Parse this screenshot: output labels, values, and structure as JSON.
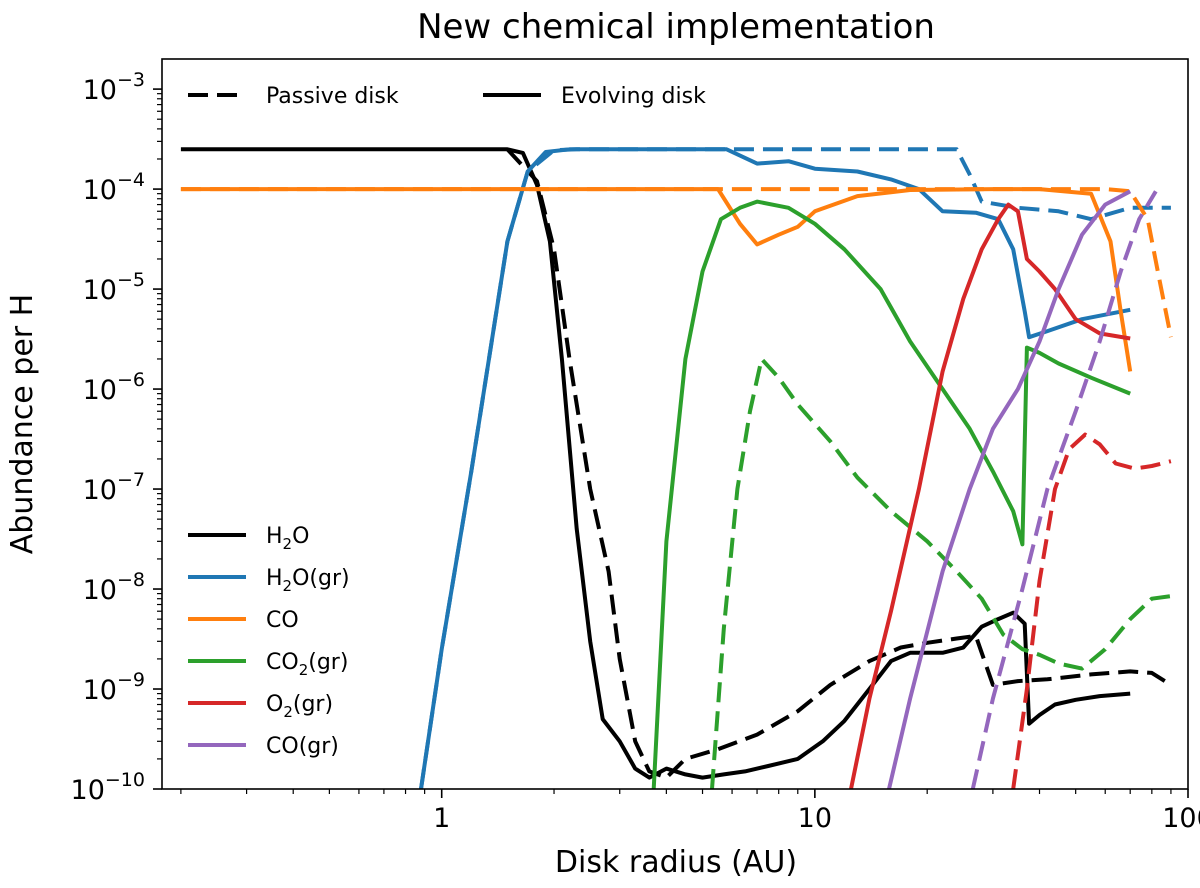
{
  "chart_data": {
    "type": "line",
    "title": "New chemical implementation",
    "xlabel": "Disk radius (AU)",
    "ylabel": "Abundance per H",
    "xscale": "log",
    "yscale": "log",
    "xlim": [
      0.178,
      100
    ],
    "ylim": [
      1e-10,
      0.002
    ],
    "grid": false,
    "x_ticks": [
      {
        "value": 1,
        "label": "1"
      },
      {
        "value": 10,
        "label": "10"
      },
      {
        "value": 100,
        "label": "100"
      }
    ],
    "y_ticks": [
      {
        "value": 1e-10,
        "base": "10",
        "exp": "−10"
      },
      {
        "value": 1e-09,
        "base": "10",
        "exp": "−9"
      },
      {
        "value": 1e-08,
        "base": "10",
        "exp": "−8"
      },
      {
        "value": 1e-07,
        "base": "10",
        "exp": "−7"
      },
      {
        "value": 1e-06,
        "base": "10",
        "exp": "−6"
      },
      {
        "value": 1e-05,
        "base": "10",
        "exp": "−5"
      },
      {
        "value": 0.0001,
        "base": "10",
        "exp": "−4"
      },
      {
        "value": 0.001,
        "base": "10",
        "exp": "−3"
      }
    ],
    "style_legend": {
      "placement": "top-left",
      "entries": [
        {
          "label": "Passive disk",
          "dash": true
        },
        {
          "label": "Evolving disk",
          "dash": false
        }
      ]
    },
    "species_legend": {
      "placement": "lower-left",
      "entries": [
        {
          "series": "H2O",
          "base": "H",
          "sub": "2",
          "rest": "O",
          "color": "#000000"
        },
        {
          "series": "H2O(gr)",
          "base": "H",
          "sub": "2",
          "rest": "O(gr)",
          "color": "#1f77b4"
        },
        {
          "series": "CO",
          "base": "CO",
          "sub": "",
          "rest": "",
          "color": "#ff7f0e"
        },
        {
          "series": "CO2(gr)",
          "base": "CO",
          "sub": "2",
          "rest": "(gr)",
          "color": "#2ca02c"
        },
        {
          "series": "O2(gr)",
          "base": "O",
          "sub": "2",
          "rest": "(gr)",
          "color": "#d62728"
        },
        {
          "series": "CO(gr)",
          "base": "CO",
          "sub": "",
          "rest": "(gr)",
          "color": "#9467bd"
        }
      ]
    },
    "series": [
      {
        "name": "H2O",
        "model": "Evolving disk",
        "color": "#000000",
        "dashed": false,
        "points": [
          [
            0.2,
            0.00025
          ],
          [
            1.5,
            0.00025
          ],
          [
            1.65,
            0.00023
          ],
          [
            1.8,
            0.00011
          ],
          [
            1.95,
            3e-05
          ],
          [
            2.1,
            2e-06
          ],
          [
            2.3,
            4e-08
          ],
          [
            2.5,
            3e-09
          ],
          [
            2.7,
            5e-10
          ],
          [
            3.0,
            3e-10
          ],
          [
            3.3,
            1.6e-10
          ],
          [
            3.6,
            1.3e-10
          ],
          [
            4.0,
            1.6e-10
          ],
          [
            4.5,
            1.4e-10
          ],
          [
            5.0,
            1.3e-10
          ],
          [
            5.7,
            1.4e-10
          ],
          [
            6.5,
            1.5e-10
          ],
          [
            7.5,
            1.7e-10
          ],
          [
            9.0,
            2e-10
          ],
          [
            10.5,
            3e-10
          ],
          [
            12.0,
            4.8e-10
          ],
          [
            14.0,
            1e-09
          ],
          [
            16.0,
            1.9e-09
          ],
          [
            18.0,
            2.3e-09
          ],
          [
            22.0,
            2.3e-09
          ],
          [
            25.0,
            2.6e-09
          ],
          [
            28.0,
            4.2e-09
          ],
          [
            31.0,
            5e-09
          ],
          [
            34.0,
            5.8e-09
          ],
          [
            36.5,
            4.5e-09
          ],
          [
            37.5,
            4.5e-10
          ],
          [
            40.0,
            5.5e-10
          ],
          [
            44.0,
            7e-10
          ],
          [
            50.0,
            7.8e-10
          ],
          [
            58.0,
            8.5e-10
          ],
          [
            70.0,
            9e-10
          ]
        ]
      },
      {
        "name": "H2O",
        "model": "Passive disk",
        "color": "#000000",
        "dashed": true,
        "points": [
          [
            1.5,
            0.00025
          ],
          [
            1.8,
            0.00012
          ],
          [
            2.0,
            2.5e-05
          ],
          [
            2.2,
            2e-06
          ],
          [
            2.5,
            1e-07
          ],
          [
            2.8,
            1.5e-08
          ],
          [
            3.0,
            2e-09
          ],
          [
            3.3,
            3e-10
          ],
          [
            3.6,
            1.5e-10
          ],
          [
            4.0,
            1.3e-10
          ],
          [
            4.5,
            2e-10
          ],
          [
            5.5,
            2.5e-10
          ],
          [
            7.0,
            3.5e-10
          ],
          [
            9.0,
            6e-10
          ],
          [
            11.0,
            1.1e-09
          ],
          [
            14.0,
            1.9e-09
          ],
          [
            17.0,
            2.6e-09
          ],
          [
            20.0,
            2.9e-09
          ],
          [
            24.0,
            3.2e-09
          ],
          [
            27.0,
            3.4e-09
          ],
          [
            30.0,
            1.1e-09
          ],
          [
            35.0,
            1.2e-09
          ],
          [
            42.0,
            1.25e-09
          ],
          [
            55.0,
            1.4e-09
          ],
          [
            70.0,
            1.5e-09
          ],
          [
            80.0,
            1.45e-09
          ],
          [
            90.0,
            1.1e-09
          ]
        ]
      },
      {
        "name": "H2O(gr)",
        "model": "Evolving disk",
        "color": "#1f77b4",
        "dashed": false,
        "points": [
          [
            0.88,
            1e-10
          ],
          [
            1.0,
            2.5e-09
          ],
          [
            1.2,
            1.5e-07
          ],
          [
            1.5,
            3e-05
          ],
          [
            1.7,
            0.00015
          ],
          [
            1.9,
            0.000235
          ],
          [
            2.2,
            0.00025
          ],
          [
            5.8,
            0.00025
          ],
          [
            7.0,
            0.00018
          ],
          [
            8.5,
            0.00019
          ],
          [
            10.0,
            0.00016
          ],
          [
            13.0,
            0.00015
          ],
          [
            16.0,
            0.000125
          ],
          [
            19.0,
            0.0001
          ],
          [
            22.0,
            6e-05
          ],
          [
            27.0,
            5.8e-05
          ],
          [
            31.0,
            5e-05
          ],
          [
            34.0,
            2.5e-05
          ],
          [
            36.5,
            6e-06
          ],
          [
            37.5,
            3.3e-06
          ],
          [
            42.0,
            3.8e-06
          ],
          [
            52.0,
            5e-06
          ],
          [
            70.0,
            6.2e-06
          ]
        ]
      },
      {
        "name": "H2O(gr)",
        "model": "Passive disk",
        "color": "#1f77b4",
        "dashed": true,
        "points": [
          [
            0.88,
            1e-10
          ],
          [
            1.0,
            2.5e-09
          ],
          [
            1.2,
            1.5e-07
          ],
          [
            1.5,
            3e-05
          ],
          [
            1.7,
            0.00015
          ],
          [
            2.0,
            0.000245
          ],
          [
            2.3,
            0.00025
          ],
          [
            24.0,
            0.00025
          ],
          [
            26.0,
            0.00014
          ],
          [
            28.0,
            7.5e-05
          ],
          [
            35.0,
            6.5e-05
          ],
          [
            45.0,
            6e-05
          ],
          [
            55.0,
            5e-05
          ],
          [
            70.0,
            6.5e-05
          ],
          [
            90.0,
            6.5e-05
          ]
        ]
      },
      {
        "name": "CO",
        "model": "Evolving disk",
        "color": "#ff7f0e",
        "dashed": false,
        "points": [
          [
            0.2,
            0.0001
          ],
          [
            5.5,
            0.0001
          ],
          [
            6.3,
            4.5e-05
          ],
          [
            7.0,
            2.8e-05
          ],
          [
            8.0,
            3.5e-05
          ],
          [
            9.0,
            4.2e-05
          ],
          [
            10.0,
            6e-05
          ],
          [
            13.0,
            8.5e-05
          ],
          [
            18.0,
            9.8e-05
          ],
          [
            30.0,
            0.0001
          ],
          [
            40.0,
            0.0001
          ],
          [
            55.0,
            9e-05
          ],
          [
            62.0,
            3e-05
          ],
          [
            66.0,
            6e-06
          ],
          [
            70.0,
            1.5e-06
          ]
        ]
      },
      {
        "name": "CO",
        "model": "Passive disk",
        "color": "#ff7f0e",
        "dashed": true,
        "points": [
          [
            0.2,
            0.0001
          ],
          [
            60.0,
            0.0001
          ],
          [
            70.0,
            9.5e-05
          ],
          [
            78.0,
            5e-05
          ],
          [
            83.0,
            1.5e-05
          ],
          [
            90.0,
            3.3e-06
          ]
        ]
      },
      {
        "name": "CO2(gr)",
        "model": "Evolving disk",
        "color": "#2ca02c",
        "dashed": false,
        "points": [
          [
            3.7,
            1e-10
          ],
          [
            4.0,
            3e-08
          ],
          [
            4.5,
            2e-06
          ],
          [
            5.0,
            1.5e-05
          ],
          [
            5.6,
            5e-05
          ],
          [
            6.3,
            6.5e-05
          ],
          [
            7.0,
            7.5e-05
          ],
          [
            8.5,
            6.5e-05
          ],
          [
            10.0,
            4.5e-05
          ],
          [
            12.0,
            2.5e-05
          ],
          [
            15.0,
            1e-05
          ],
          [
            18.0,
            3e-06
          ],
          [
            22.0,
            1e-06
          ],
          [
            26.0,
            4e-07
          ],
          [
            30.0,
            1.5e-07
          ],
          [
            34.0,
            6e-08
          ],
          [
            36.0,
            2.8e-08
          ],
          [
            37.0,
            2.6e-06
          ],
          [
            40.0,
            2.3e-06
          ],
          [
            45.0,
            1.8e-06
          ],
          [
            55.0,
            1.3e-06
          ],
          [
            70.0,
            9e-07
          ]
        ]
      },
      {
        "name": "CO2(gr)",
        "model": "Passive disk",
        "color": "#2ca02c",
        "dashed": true,
        "points": [
          [
            5.3,
            1e-10
          ],
          [
            5.7,
            4e-09
          ],
          [
            6.2,
            1e-07
          ],
          [
            6.7,
            6e-07
          ],
          [
            7.2,
            2e-06
          ],
          [
            8.0,
            1.3e-06
          ],
          [
            9.0,
            7e-07
          ],
          [
            11.0,
            3e-07
          ],
          [
            13.0,
            1.3e-07
          ],
          [
            16.0,
            6e-08
          ],
          [
            20.0,
            3e-08
          ],
          [
            24.0,
            1.5e-08
          ],
          [
            28.0,
            8e-09
          ],
          [
            32.0,
            3.5e-09
          ],
          [
            36.0,
            2.5e-09
          ],
          [
            40.0,
            2.2e-09
          ],
          [
            45.0,
            1.8e-09
          ],
          [
            52.0,
            1.6e-09
          ],
          [
            60.0,
            2.5e-09
          ],
          [
            70.0,
            5e-09
          ],
          [
            80.0,
            8e-09
          ],
          [
            90.0,
            8.5e-09
          ]
        ]
      },
      {
        "name": "O2(gr)",
        "model": "Evolving disk",
        "color": "#d62728",
        "dashed": false,
        "points": [
          [
            12.5,
            1e-10
          ],
          [
            14.0,
            8e-10
          ],
          [
            16.0,
            6e-09
          ],
          [
            19.0,
            1e-07
          ],
          [
            22.0,
            1.5e-06
          ],
          [
            25.0,
            8e-06
          ],
          [
            28.0,
            2.5e-05
          ],
          [
            31.0,
            5e-05
          ],
          [
            33.0,
            7e-05
          ],
          [
            35.0,
            6e-05
          ],
          [
            37.0,
            2e-05
          ],
          [
            40.0,
            1.5e-05
          ],
          [
            44.0,
            1e-05
          ],
          [
            50.0,
            5e-06
          ],
          [
            58.0,
            3.6e-06
          ],
          [
            70.0,
            3.2e-06
          ]
        ]
      },
      {
        "name": "O2(gr)",
        "model": "Passive disk",
        "color": "#d62728",
        "dashed": true,
        "points": [
          [
            34.0,
            1e-10
          ],
          [
            37.0,
            1e-09
          ],
          [
            40.0,
            1.2e-08
          ],
          [
            44.0,
            1e-07
          ],
          [
            48.0,
            2.5e-07
          ],
          [
            53.0,
            3.5e-07
          ],
          [
            58.0,
            2.8e-07
          ],
          [
            64.0,
            1.8e-07
          ],
          [
            72.0,
            1.6e-07
          ],
          [
            80.0,
            1.7e-07
          ],
          [
            90.0,
            1.9e-07
          ]
        ]
      },
      {
        "name": "CO(gr)",
        "model": "Evolving disk",
        "color": "#9467bd",
        "dashed": false,
        "points": [
          [
            15.8,
            1e-10
          ],
          [
            18.0,
            8e-10
          ],
          [
            22.0,
            1.5e-08
          ],
          [
            26.0,
            1e-07
          ],
          [
            30.0,
            4e-07
          ],
          [
            35.0,
            1e-06
          ],
          [
            40.0,
            3e-06
          ],
          [
            45.0,
            1e-05
          ],
          [
            52.0,
            3.5e-05
          ],
          [
            60.0,
            7e-05
          ],
          [
            70.0,
            9.5e-05
          ]
        ]
      },
      {
        "name": "CO(gr)",
        "model": "Passive disk",
        "color": "#9467bd",
        "dashed": true,
        "points": [
          [
            26.5,
            1e-10
          ],
          [
            30.0,
            8e-10
          ],
          [
            36.0,
            1e-08
          ],
          [
            42.0,
            1e-07
          ],
          [
            50.0,
            6e-07
          ],
          [
            58.0,
            3e-06
          ],
          [
            66.0,
            1.5e-05
          ],
          [
            74.0,
            5e-05
          ],
          [
            82.0,
            9.5e-05
          ]
        ]
      }
    ]
  }
}
